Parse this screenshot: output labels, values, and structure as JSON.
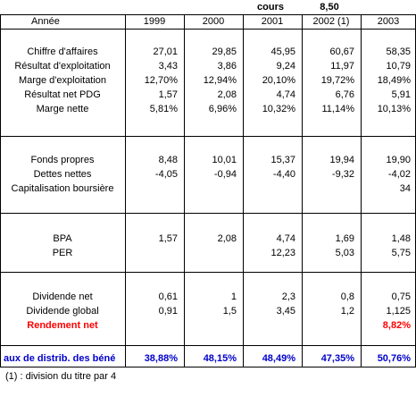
{
  "top": {
    "cours_label": "cours",
    "cours_value": "8,50"
  },
  "header": {
    "label": "Année",
    "years": [
      "1999",
      "2000",
      "2001",
      "2002 (1)",
      "2003"
    ]
  },
  "section1": {
    "rows": [
      {
        "label": "Chiffre d'affaires",
        "values": [
          "27,01",
          "29,85",
          "45,95",
          "60,67",
          "58,35"
        ]
      },
      {
        "label": "Résultat d'exploitation",
        "values": [
          "3,43",
          "3,86",
          "9,24",
          "11,97",
          "10,79"
        ]
      },
      {
        "label": "Marge d'exploitation",
        "values": [
          "12,70%",
          "12,94%",
          "20,10%",
          "19,72%",
          "18,49%"
        ]
      },
      {
        "label": "Résultat net PDG",
        "values": [
          "1,57",
          "2,08",
          "4,74",
          "6,76",
          "5,91"
        ]
      },
      {
        "label": "Marge nette",
        "values": [
          "5,81%",
          "6,96%",
          "10,32%",
          "11,14%",
          "10,13%"
        ]
      }
    ]
  },
  "section2": {
    "rows": [
      {
        "label": "Fonds propres",
        "values": [
          "8,48",
          "10,01",
          "15,37",
          "19,94",
          "19,90"
        ]
      },
      {
        "label": "Dettes nettes",
        "values": [
          "-4,05",
          "-0,94",
          "-4,40",
          "-9,32",
          "-4,02"
        ]
      },
      {
        "label": "Capitalisation boursière",
        "values": [
          "",
          "",
          "",
          "",
          "34"
        ]
      }
    ]
  },
  "section3": {
    "rows": [
      {
        "label": "BPA",
        "values": [
          "1,57",
          "2,08",
          "4,74",
          "1,69",
          "1,48"
        ]
      },
      {
        "label": "PER",
        "values": [
          "",
          "",
          "12,23",
          "5,03",
          "5,75"
        ]
      }
    ]
  },
  "section4": {
    "rows": [
      {
        "label": "Dividende net",
        "values": [
          "0,61",
          "1",
          "2,3",
          "0,8",
          "0,75"
        ]
      },
      {
        "label": "Dividende global",
        "values": [
          "0,91",
          "1,5",
          "3,45",
          "1,2",
          "1,125"
        ]
      },
      {
        "label": "Rendement net",
        "values": [
          "",
          "",
          "",
          "",
          "8,82%"
        ]
      }
    ]
  },
  "distrib": {
    "label": "aux de distrib. des béné",
    "values": [
      "38,88%",
      "48,15%",
      "48,49%",
      "47,35%",
      "50,76%"
    ]
  },
  "footnote": "(1) : division du titre par 4",
  "colors": {
    "red": "#ff0000",
    "blue": "#0000cc",
    "text": "#000000"
  }
}
